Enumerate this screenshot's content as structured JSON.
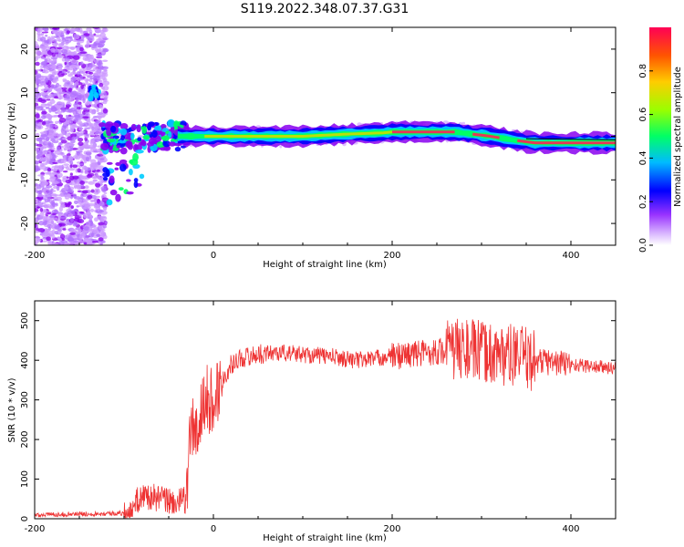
{
  "title": "S119.2022.348.07.37.G31",
  "chart_data": [
    {
      "type": "heatmap",
      "xlabel": "Height of straight line (km)",
      "ylabel": "Frequency (Hz)",
      "xlim": [
        -200,
        450
      ],
      "ylim": [
        -25,
        25
      ],
      "xticks": [
        "-200",
        "0",
        "200",
        "400"
      ],
      "yticks": [
        "-20",
        "-10",
        "0",
        "10",
        "20"
      ],
      "grid": false,
      "colorbar": {
        "label": "Normalized spectral amplitude",
        "range": [
          0,
          1
        ],
        "ticks": [
          "0.0",
          "0.2",
          "0.4",
          "0.6",
          "0.8"
        ],
        "colors": [
          "#ffffff",
          "#cc99ff",
          "#8800ee",
          "#0000ff",
          "#00ccff",
          "#00ff66",
          "#aaff00",
          "#ffcc00",
          "#ff6600",
          "#ff0055"
        ]
      },
      "ridge": {
        "x": [
          -40,
          0,
          50,
          100,
          150,
          190,
          200,
          230,
          270,
          290,
          310,
          340,
          360,
          400,
          450
        ],
        "y": [
          0,
          0,
          0,
          0,
          0.5,
          0.8,
          1,
          1,
          1,
          0.5,
          0,
          -1,
          -1.5,
          -1.5,
          -1.5
        ]
      },
      "scatter_region": {
        "x": [
          -200,
          -120
        ],
        "y": [
          -25,
          25
        ]
      }
    },
    {
      "type": "line",
      "xlabel": "Height of straight line (km)",
      "ylabel": "SNR (10 * v/v)",
      "xlim": [
        -200,
        450
      ],
      "ylim": [
        0,
        550
      ],
      "xticks": [
        "-200",
        "0",
        "200",
        "400"
      ],
      "yticks": [
        "0",
        "100",
        "200",
        "300",
        "400",
        "500"
      ],
      "grid": false,
      "series": [
        {
          "color": "#ee3333",
          "x": [
            -200,
            -150,
            -100,
            -90,
            -80,
            -60,
            -40,
            -30,
            -25,
            -20,
            -10,
            0,
            10,
            20,
            30,
            50,
            70,
            100,
            130,
            160,
            200,
            240,
            280,
            300,
            320,
            340,
            360,
            380,
            400,
            420,
            450
          ],
          "y": [
            10,
            12,
            14,
            30,
            60,
            50,
            40,
            50,
            250,
            200,
            300,
            300,
            350,
            390,
            405,
            415,
            420,
            415,
            410,
            400,
            410,
            420,
            430,
            420,
            415,
            410,
            400,
            395,
            390,
            385,
            380
          ]
        }
      ]
    }
  ]
}
